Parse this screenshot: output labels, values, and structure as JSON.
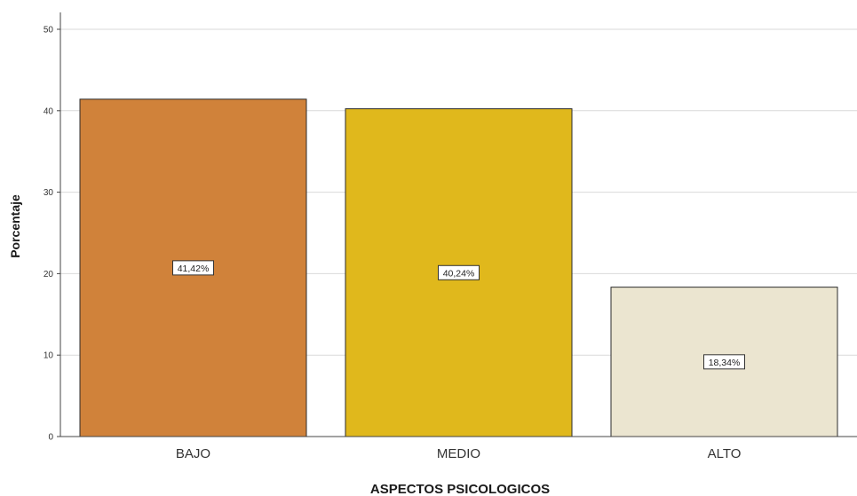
{
  "chart_data": {
    "type": "bar",
    "title": "",
    "xlabel": "ASPECTOS PSICOLOGICOS",
    "ylabel": "Porcentaje",
    "categories": [
      "BAJO",
      "MEDIO",
      "ALTO"
    ],
    "values": [
      41.42,
      40.24,
      18.34
    ],
    "data_labels": [
      "41,42%",
      "40,24%",
      "18,34%"
    ],
    "colors": [
      "#d0823a",
      "#e0b81c",
      "#ebe5d0"
    ],
    "ylim": [
      0,
      50
    ],
    "yticks": [
      0,
      10,
      20,
      30,
      40,
      50
    ],
    "grid": true,
    "legend": "none"
  }
}
